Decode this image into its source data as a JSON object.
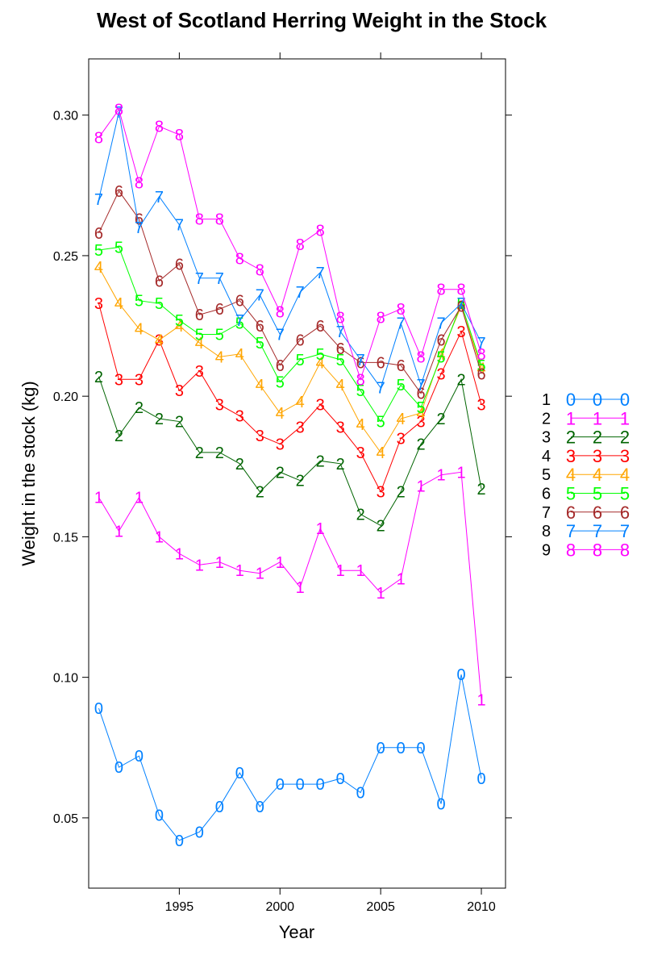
{
  "chart_data": {
    "type": "line",
    "title": "West of Scotland Herring Weight in the Stock",
    "xlabel": "Year",
    "ylabel": "Weight in the stock (kg)",
    "xlim": [
      1990.5,
      2011.2
    ],
    "ylim": [
      0.025,
      0.32
    ],
    "xticks": [
      1995,
      2000,
      2005,
      2010
    ],
    "yticks": [
      0.05,
      0.1,
      0.15,
      0.2,
      0.25,
      0.3
    ],
    "ytick_labels": [
      "0.05",
      "0.10",
      "0.15",
      "0.20",
      "0.25",
      "0.30"
    ],
    "x": [
      1991,
      1992,
      1993,
      1994,
      1995,
      1996,
      1997,
      1998,
      1999,
      2000,
      2001,
      2002,
      2003,
      2004,
      2005,
      2006,
      2007,
      2008,
      2009,
      2010
    ],
    "legend_position": "right",
    "series": [
      {
        "name": "1",
        "symbol": "0",
        "color": "#0080ff",
        "values": [
          0.089,
          0.068,
          0.072,
          0.051,
          0.042,
          0.045,
          0.054,
          0.066,
          0.054,
          0.062,
          0.062,
          0.062,
          0.064,
          0.059,
          0.075,
          0.075,
          0.075,
          0.055,
          0.101,
          0.064
        ]
      },
      {
        "name": "2",
        "symbol": "1",
        "color": "#ff00ff",
        "values": [
          0.164,
          0.152,
          0.164,
          0.15,
          0.144,
          0.14,
          0.141,
          0.138,
          0.137,
          0.141,
          0.132,
          0.153,
          0.138,
          0.138,
          0.13,
          0.135,
          0.168,
          0.172,
          0.173,
          0.092
        ]
      },
      {
        "name": "3",
        "symbol": "2",
        "color": "#006400",
        "values": [
          0.207,
          0.186,
          0.196,
          0.192,
          0.191,
          0.18,
          0.18,
          0.176,
          0.166,
          0.173,
          0.17,
          0.177,
          0.176,
          0.158,
          0.154,
          0.166,
          0.183,
          0.192,
          0.206,
          0.167
        ]
      },
      {
        "name": "4",
        "symbol": "3",
        "color": "#ff0000",
        "values": [
          0.233,
          0.206,
          0.206,
          0.22,
          0.202,
          0.209,
          0.197,
          0.193,
          0.186,
          0.183,
          0.189,
          0.197,
          0.189,
          0.18,
          0.166,
          0.185,
          0.191,
          0.208,
          0.223,
          0.197
        ]
      },
      {
        "name": "5",
        "symbol": "4",
        "color": "#ffa500",
        "values": [
          0.246,
          0.233,
          0.224,
          0.22,
          0.225,
          0.219,
          0.214,
          0.215,
          0.204,
          0.194,
          0.198,
          0.212,
          0.204,
          0.19,
          0.18,
          0.192,
          0.194,
          0.215,
          0.232,
          0.21
        ]
      },
      {
        "name": "6",
        "symbol": "5",
        "color": "#00ff00",
        "values": [
          0.252,
          0.253,
          0.234,
          0.233,
          0.227,
          0.222,
          0.222,
          0.226,
          0.219,
          0.205,
          0.213,
          0.215,
          0.213,
          0.202,
          0.191,
          0.204,
          0.196,
          0.214,
          0.233,
          0.211
        ]
      },
      {
        "name": "7",
        "symbol": "6",
        "color": "#a52a2a",
        "values": [
          0.258,
          0.273,
          0.263,
          0.241,
          0.247,
          0.229,
          0.231,
          0.234,
          0.225,
          0.211,
          0.22,
          0.225,
          0.217,
          0.212,
          0.212,
          0.211,
          0.201,
          0.22,
          0.232,
          0.208
        ]
      },
      {
        "name": "8",
        "symbol": "7",
        "color": "#0080ff",
        "values": [
          0.27,
          0.301,
          0.26,
          0.271,
          0.261,
          0.242,
          0.242,
          0.227,
          0.236,
          0.222,
          0.237,
          0.244,
          0.223,
          0.213,
          0.203,
          0.226,
          0.204,
          0.226,
          0.233,
          0.219
        ]
      },
      {
        "name": "9",
        "symbol": "8",
        "color": "#ff00ff",
        "values": [
          0.292,
          0.302,
          0.276,
          0.296,
          0.293,
          0.263,
          0.263,
          0.249,
          0.245,
          0.23,
          0.254,
          0.259,
          0.228,
          0.206,
          0.228,
          0.231,
          0.214,
          0.238,
          0.238,
          0.215
        ]
      }
    ]
  }
}
